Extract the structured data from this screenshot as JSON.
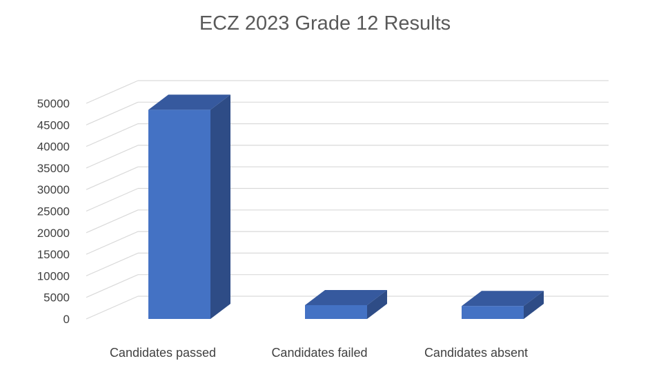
{
  "chart_data": {
    "type": "bar",
    "title": "ECZ 2023 Grade 12 Results",
    "categories": [
      "Candidates passed",
      "Candidates failed",
      "Candidates absent"
    ],
    "values": [
      48500,
      3200,
      3000
    ],
    "ylim": [
      0,
      50000
    ],
    "yticks": [
      0,
      5000,
      10000,
      15000,
      20000,
      25000,
      30000,
      35000,
      40000,
      45000,
      50000
    ],
    "xlabel": "",
    "ylabel": "",
    "grid": true,
    "legend": "none",
    "colors": {
      "bar_front": "#4472C4",
      "bar_side": "#2E4C86",
      "bar_top": "#36599E",
      "grid": "#D9D9D9"
    }
  }
}
